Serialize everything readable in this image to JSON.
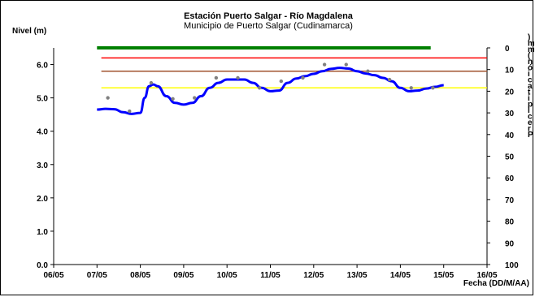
{
  "chart_data": {
    "type": "line",
    "title": "Estación Puerto Salgar - Río Magdalena",
    "subtitle": "Municipio de Puerto Salgar (Cudinamarca)",
    "ylabel": "Nivel (m)",
    "xlabel": "Fecha (DD/M/AA)",
    "y2label": "Precipitación (mm)",
    "x_ticks": [
      "06/05",
      "07/05",
      "08/05",
      "09/05",
      "10/05",
      "11/05",
      "12/05",
      "13/05",
      "14/05",
      "15/05",
      "16/05"
    ],
    "xlim": [
      0,
      10
    ],
    "y_ticks": [
      "0.0",
      "1.0",
      "2.0",
      "3.0",
      "4.0",
      "5.0",
      "6.0"
    ],
    "ylim": [
      0,
      6.5
    ],
    "y2_ticks": [
      "0",
      "10",
      "20",
      "30",
      "40",
      "50",
      "60",
      "70",
      "80",
      "90",
      "100"
    ],
    "y2lim": [
      0,
      100
    ],
    "grid": false,
    "threshold_lines": [
      {
        "level": 6.2,
        "color": "#ff0000",
        "x_range": [
          1.1,
          10.0
        ]
      },
      {
        "level": 5.8,
        "color": "#a0522d",
        "x_range": [
          1.1,
          10.0
        ]
      },
      {
        "level": 5.3,
        "color": "#ffff00",
        "x_range": [
          1.1,
          10.0
        ]
      }
    ],
    "precipitation_bar": {
      "value_mm": 0,
      "color": "#008000",
      "x_range": [
        1.0,
        8.7
      ]
    },
    "series": [
      {
        "kind": "smoothed-level",
        "color": "#0000ff",
        "x": [
          1.0,
          1.2,
          1.4,
          1.6,
          1.8,
          2.0,
          2.1,
          2.2,
          2.3,
          2.4,
          2.6,
          2.8,
          3.0,
          3.2,
          3.4,
          3.6,
          3.8,
          4.0,
          4.2,
          4.4,
          4.6,
          4.8,
          5.0,
          5.2,
          5.4,
          5.6,
          5.8,
          6.0,
          6.2,
          6.4,
          6.6,
          6.8,
          7.0,
          7.2,
          7.4,
          7.6,
          7.8,
          8.0,
          8.2,
          8.4,
          8.6,
          8.8,
          9.0
        ],
        "values": [
          4.65,
          4.67,
          4.66,
          4.57,
          4.52,
          4.55,
          5.0,
          5.35,
          5.4,
          5.35,
          5.05,
          4.85,
          4.8,
          4.85,
          5.05,
          5.3,
          5.45,
          5.55,
          5.55,
          5.55,
          5.45,
          5.3,
          5.2,
          5.22,
          5.45,
          5.58,
          5.65,
          5.72,
          5.8,
          5.87,
          5.9,
          5.88,
          5.8,
          5.73,
          5.68,
          5.6,
          5.5,
          5.3,
          5.2,
          5.22,
          5.28,
          5.33,
          5.38
        ]
      },
      {
        "kind": "observations",
        "color": "#808080",
        "x": [
          1.25,
          1.75,
          2.25,
          2.75,
          3.25,
          3.75,
          4.25,
          4.75,
          5.25,
          5.75,
          6.25,
          6.75,
          7.25,
          7.75,
          8.25,
          8.75
        ],
        "values": [
          5.0,
          4.6,
          5.45,
          4.97,
          5.0,
          5.6,
          5.6,
          5.3,
          5.5,
          5.6,
          6.0,
          6.0,
          5.8,
          5.55,
          5.3,
          5.3
        ]
      }
    ]
  }
}
